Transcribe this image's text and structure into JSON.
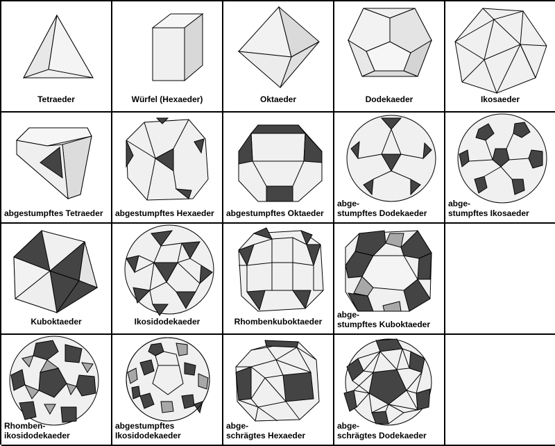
{
  "solids": [
    {
      "id": "tetraeder",
      "label": "Tetraeder"
    },
    {
      "id": "wuerfel",
      "label": "Würfel (Hexaeder)"
    },
    {
      "id": "oktaeder",
      "label": "Oktaeder"
    },
    {
      "id": "dodekaeder",
      "label": "Dodekaeder"
    },
    {
      "id": "ikosaeder",
      "label": "Ikosaeder"
    },
    {
      "id": "abgestumpftes-tetraeder",
      "label": "abgestumpftes Tetraeder"
    },
    {
      "id": "abgestumpftes-hexaeder",
      "label": "abgestumpftes Hexaeder"
    },
    {
      "id": "abgestumpftes-oktaeder",
      "label": "abgestumpftes Oktaeder"
    },
    {
      "id": "abgestumpftes-dodekaeder",
      "label": "abge-\nstumpftes Dodekaeder"
    },
    {
      "id": "abgestumpftes-ikosaeder",
      "label": "abge-\nstumpftes Ikosaeder"
    },
    {
      "id": "kuboktaeder",
      "label": "Kuboktaeder"
    },
    {
      "id": "ikosidodekaeder",
      "label": "Ikosidodekaeder"
    },
    {
      "id": "rhombenkuboktaeder",
      "label": "Rhombenkuboktaeder"
    },
    {
      "id": "abgestumpftes-kuboktaeder",
      "label": "abge-\nstumpftes Kuboktaeder"
    },
    {
      "id": "rhombenikosidodekaeder",
      "label": "Rhomben-\nikosidodekaeder"
    },
    {
      "id": "abgestumpftes-ikosidodekaeder",
      "label": "abgestumpftes\nIkosidodekaeder"
    },
    {
      "id": "abgeschraegtes-hexaeder",
      "label": "abge-\nschrägtes Hexaeder"
    },
    {
      "id": "abgeschraegtes-dodekaeder",
      "label": "abge-\nschrägtes Dodekaeder"
    }
  ],
  "colors": {
    "face_light": "#f0f0f0",
    "face_dark": "#444444",
    "face_mid": "#a8a8a8",
    "edge": "#000000"
  }
}
